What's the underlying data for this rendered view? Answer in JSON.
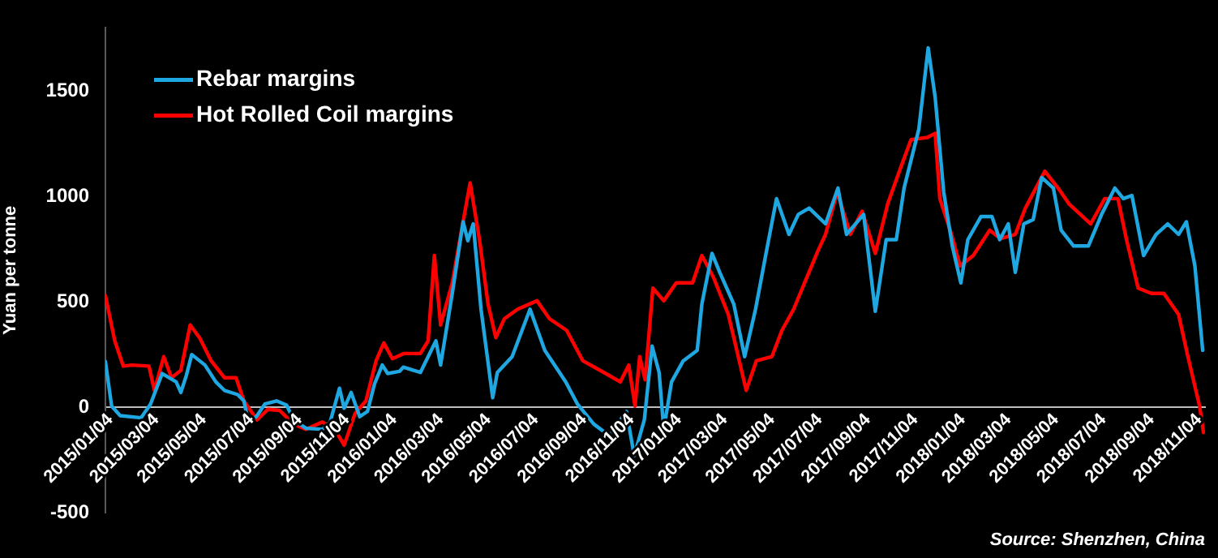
{
  "chart_data": {
    "type": "line",
    "ylabel": "Yuan per tonne",
    "annotations": [
      "Source: Shenzhen, China"
    ],
    "legend": "top left",
    "grid": false,
    "marker": "none",
    "line_style": "solid",
    "xlim": [
      "2015-01-04",
      "2018-11-18"
    ],
    "ylim": [
      -500,
      1800
    ],
    "yticks": [
      -500,
      0,
      500,
      1000,
      1500
    ],
    "xticks": [
      {
        "value": "2015-01-04",
        "label": "2015/01/04"
      },
      {
        "value": "2015-03-04",
        "label": "2015/03/04"
      },
      {
        "value": "2015-05-04",
        "label": "2015/05/04"
      },
      {
        "value": "2015-07-04",
        "label": "2015/07/04"
      },
      {
        "value": "2015-09-04",
        "label": "2015/09/04"
      },
      {
        "value": "2015-11-04",
        "label": "2015/11/04"
      },
      {
        "value": "2016-01-04",
        "label": "2016/01/04"
      },
      {
        "value": "2016-03-04",
        "label": "2016/03/04"
      },
      {
        "value": "2016-05-04",
        "label": "2016/05/04"
      },
      {
        "value": "2016-07-04",
        "label": "2016/07/04"
      },
      {
        "value": "2016-09-04",
        "label": "2016/09/04"
      },
      {
        "value": "2016-11-04",
        "label": "2016/11/04"
      },
      {
        "value": "2017-01-04",
        "label": "2017/01/04"
      },
      {
        "value": "2017-03-04",
        "label": "2017/03/04"
      },
      {
        "value": "2017-05-04",
        "label": "2017/05/04"
      },
      {
        "value": "2017-07-04",
        "label": "2017/07/04"
      },
      {
        "value": "2017-09-04",
        "label": "2017/09/04"
      },
      {
        "value": "2017-11-04",
        "label": "2017/11/04"
      },
      {
        "value": "2018-01-04",
        "label": "2018/01/04"
      },
      {
        "value": "2018-03-04",
        "label": "2018/03/04"
      },
      {
        "value": "2018-05-04",
        "label": "2018/05/04"
      },
      {
        "value": "2018-07-04",
        "label": "2018/07/04"
      },
      {
        "value": "2018-09-04",
        "label": "2018/09/04"
      },
      {
        "value": "2018-11-04",
        "label": "2018/11/04"
      }
    ],
    "series": [
      {
        "name": "Rebar margins",
        "color": "#1ea7e1",
        "x": [
          "2015-01-04",
          "2015-01-12",
          "2015-01-23",
          "2015-02-19",
          "2015-03-03",
          "2015-03-18",
          "2015-04-05",
          "2015-04-11",
          "2015-04-18",
          "2015-04-25",
          "2015-05-12",
          "2015-05-26",
          "2015-06-06",
          "2015-06-23",
          "2015-07-01",
          "2015-07-07",
          "2015-07-17",
          "2015-07-28",
          "2015-08-12",
          "2015-08-25",
          "2015-09-03",
          "2015-09-19",
          "2015-10-10",
          "2015-10-20",
          "2015-11-01",
          "2015-11-07",
          "2015-11-16",
          "2015-11-27",
          "2015-12-07",
          "2015-12-16",
          "2015-12-26",
          "2016-01-02",
          "2016-01-17",
          "2016-01-22",
          "2016-02-13",
          "2016-03-04",
          "2016-03-10",
          "2016-03-25",
          "2016-04-08",
          "2016-04-14",
          "2016-04-21",
          "2016-05-01",
          "2016-05-16",
          "2016-05-22",
          "2016-06-10",
          "2016-07-03",
          "2016-07-22",
          "2016-08-18",
          "2016-09-02",
          "2016-09-23",
          "2016-10-13",
          "2016-11-04",
          "2016-11-14",
          "2016-11-27",
          "2016-12-07",
          "2016-12-16",
          "2016-12-22",
          "2017-01-01",
          "2017-01-16",
          "2017-02-03",
          "2017-02-09",
          "2017-02-22",
          "2017-03-04",
          "2017-03-22",
          "2017-04-05",
          "2017-04-19",
          "2017-05-02",
          "2017-05-16",
          "2017-06-01",
          "2017-06-13",
          "2017-06-27",
          "2017-07-18",
          "2017-08-03",
          "2017-08-14",
          "2017-09-05",
          "2017-09-20",
          "2017-10-04",
          "2017-10-17",
          "2017-10-27",
          "2017-11-15",
          "2017-11-27",
          "2017-12-06",
          "2017-12-17",
          "2017-12-28",
          "2018-01-08",
          "2018-01-17",
          "2018-02-03",
          "2018-02-17",
          "2018-02-27",
          "2018-03-10",
          "2018-03-19",
          "2018-03-30",
          "2018-04-11",
          "2018-04-22",
          "2018-05-07",
          "2018-05-17",
          "2018-06-02",
          "2018-06-21",
          "2018-07-08",
          "2018-07-25",
          "2018-08-05",
          "2018-08-16",
          "2018-08-31",
          "2018-09-16",
          "2018-10-01",
          "2018-10-15",
          "2018-10-25",
          "2018-11-05",
          "2018-11-15"
        ],
        "values": [
          217,
          5,
          -40,
          -50,
          15,
          160,
          120,
          70,
          150,
          250,
          200,
          120,
          80,
          60,
          30,
          -70,
          -45,
          15,
          30,
          10,
          -60,
          -100,
          -105,
          -70,
          90,
          -5,
          70,
          -45,
          -20,
          110,
          200,
          160,
          170,
          190,
          165,
          315,
          200,
          540,
          880,
          790,
          870,
          465,
          45,
          165,
          240,
          465,
          270,
          120,
          15,
          -80,
          -135,
          -20,
          -230,
          -60,
          290,
          165,
          -105,
          120,
          220,
          270,
          490,
          730,
          640,
          490,
          240,
          465,
          720,
          990,
          820,
          915,
          945,
          870,
          1040,
          820,
          915,
          455,
          795,
          795,
          1040,
          1320,
          1705,
          1470,
          1020,
          765,
          590,
          795,
          905,
          905,
          795,
          870,
          640,
          870,
          890,
          1090,
          1040,
          840,
          765,
          765,
          915,
          1040,
          990,
          1005,
          720,
          820,
          870,
          820,
          880,
          670,
          270
        ]
      },
      {
        "name": "Hot Rolled Coil margins",
        "color": "#ff0000",
        "x": [
          "2015-01-04",
          "2015-01-16",
          "2015-01-27",
          "2015-02-07",
          "2015-03-01",
          "2015-03-08",
          "2015-03-20",
          "2015-03-30",
          "2015-04-11",
          "2015-04-23",
          "2015-05-05",
          "2015-05-20",
          "2015-06-06",
          "2015-06-21",
          "2015-07-01",
          "2015-07-18",
          "2015-08-01",
          "2015-08-16",
          "2015-09-03",
          "2015-09-19",
          "2015-10-10",
          "2015-10-26",
          "2015-11-07",
          "2015-11-21",
          "2015-12-05",
          "2015-12-18",
          "2015-12-28",
          "2016-01-08",
          "2016-01-23",
          "2016-02-13",
          "2016-02-23",
          "2016-03-02",
          "2016-03-10",
          "2016-03-25",
          "2016-04-05",
          "2016-04-17",
          "2016-04-29",
          "2016-05-10",
          "2016-05-20",
          "2016-05-31",
          "2016-06-17",
          "2016-07-12",
          "2016-07-28",
          "2016-08-19",
          "2016-09-09",
          "2016-10-06",
          "2016-10-27",
          "2016-11-07",
          "2016-11-15",
          "2016-11-21",
          "2016-11-28",
          "2016-12-08",
          "2016-12-22",
          "2017-01-07",
          "2017-01-28",
          "2017-02-09",
          "2017-02-24",
          "2017-03-15",
          "2017-04-07",
          "2017-04-20",
          "2017-05-10",
          "2017-05-23",
          "2017-06-07",
          "2017-06-21",
          "2017-07-08",
          "2017-07-18",
          "2017-08-02",
          "2017-08-19",
          "2017-09-03",
          "2017-09-20",
          "2017-10-06",
          "2017-10-21",
          "2017-11-05",
          "2017-11-26",
          "2017-12-06",
          "2017-12-12",
          "2017-12-27",
          "2018-01-07",
          "2018-01-24",
          "2018-02-14",
          "2018-02-28",
          "2018-03-19",
          "2018-04-01",
          "2018-04-26",
          "2018-05-13",
          "2018-05-27",
          "2018-06-24",
          "2018-07-12",
          "2018-07-29",
          "2018-08-09",
          "2018-08-24",
          "2018-09-10",
          "2018-09-26",
          "2018-10-15",
          "2018-10-27",
          "2018-11-11",
          "2018-11-16"
        ],
        "values": [
          530,
          315,
          195,
          200,
          195,
          80,
          240,
          140,
          175,
          390,
          330,
          220,
          140,
          140,
          30,
          -60,
          -10,
          -15,
          -80,
          -105,
          -70,
          -105,
          -180,
          -30,
          30,
          220,
          305,
          230,
          255,
          255,
          315,
          720,
          390,
          590,
          820,
          1065,
          795,
          490,
          330,
          420,
          465,
          505,
          420,
          365,
          220,
          165,
          120,
          200,
          5,
          240,
          130,
          565,
          505,
          590,
          590,
          720,
          615,
          440,
          80,
          220,
          240,
          365,
          465,
          590,
          740,
          820,
          1020,
          820,
          930,
          730,
          965,
          1120,
          1270,
          1280,
          1300,
          990,
          820,
          670,
          720,
          840,
          800,
          820,
          945,
          1120,
          1040,
          965,
          870,
          990,
          990,
          795,
          565,
          540,
          540,
          440,
          240,
          5,
          -120
        ]
      }
    ]
  }
}
